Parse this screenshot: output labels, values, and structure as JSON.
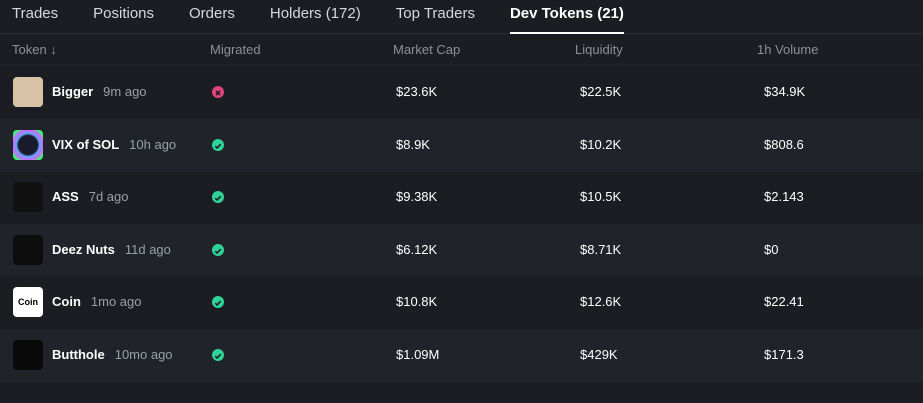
{
  "tabs": {
    "items": [
      "Trades",
      "Positions",
      "Orders",
      "Holders (172)",
      "Top Traders",
      "Dev Tokens (21)"
    ],
    "active": 5
  },
  "table": {
    "columns": [
      "Token ↓",
      "Migrated",
      "Market Cap",
      "Liquidity",
      "1h Volume"
    ],
    "rows": [
      {
        "name": "Bigger",
        "age": "9m ago",
        "migrated": false,
        "market_cap": "$23.6K",
        "liquidity": "$22.5K",
        "volume": "$34.9K"
      },
      {
        "name": "VIX of SOL",
        "age": "10h ago",
        "migrated": true,
        "market_cap": "$8.9K",
        "liquidity": "$10.2K",
        "volume": "$808.6"
      },
      {
        "name": "ASS",
        "age": "7d ago",
        "migrated": true,
        "market_cap": "$9.38K",
        "liquidity": "$10.5K",
        "volume": "$2.143"
      },
      {
        "name": "Deez Nuts",
        "age": "11d ago",
        "migrated": true,
        "market_cap": "$6.12K",
        "liquidity": "$8.71K",
        "volume": "$0"
      },
      {
        "name": "Coin",
        "age": "1mo ago",
        "migrated": true,
        "market_cap": "$10.8K",
        "liquidity": "$12.6K",
        "volume": "$22.41",
        "icon_label": "Coin"
      },
      {
        "name": "Butthole",
        "age": "10mo ago",
        "migrated": true,
        "market_cap": "$1.09M",
        "liquidity": "$429K",
        "volume": "$171.3"
      }
    ]
  }
}
